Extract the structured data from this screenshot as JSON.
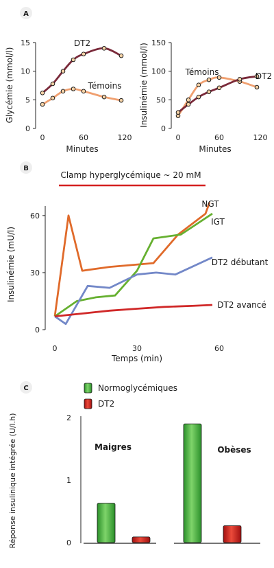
{
  "panel_labels": [
    "A",
    "B",
    "C"
  ],
  "chart_data": [
    {
      "panel": "A",
      "type": "line",
      "xlabel": "Minutes",
      "ylabel": "Glycémie (mmol/l)",
      "xticks": [
        0,
        60,
        120
      ],
      "yticks": [
        0,
        5,
        10,
        15
      ],
      "xlim": [
        -10,
        130
      ],
      "ylim": [
        0,
        15
      ],
      "series": [
        {
          "name": "DT2",
          "color": "#7a2a3a",
          "x": [
            0,
            15,
            30,
            45,
            60,
            90,
            115
          ],
          "y": [
            6.2,
            7.8,
            10.0,
            12.0,
            13.0,
            14.0,
            12.7
          ]
        },
        {
          "name": "Témoins",
          "color": "#f0a070",
          "x": [
            0,
            15,
            30,
            45,
            60,
            90,
            115
          ],
          "y": [
            4.2,
            5.3,
            6.5,
            6.9,
            6.5,
            5.5,
            4.9
          ]
        }
      ]
    },
    {
      "panel": "A",
      "type": "line",
      "xlabel": "Minutes",
      "ylabel": "Insulinémie (mmol/l)",
      "xticks": [
        0,
        60,
        120
      ],
      "yticks": [
        0,
        50,
        100,
        150
      ],
      "xlim": [
        -10,
        130
      ],
      "ylim": [
        0,
        150
      ],
      "series": [
        {
          "name": "Témoins",
          "color": "#f0a070",
          "x": [
            0,
            15,
            30,
            45,
            60,
            90,
            115
          ],
          "y": [
            22,
            50,
            76,
            85,
            89,
            82,
            72
          ]
        },
        {
          "name": "DT2",
          "color": "#7a2a3a",
          "x": [
            0,
            15,
            30,
            45,
            60,
            90,
            115
          ],
          "y": [
            28,
            42,
            55,
            64,
            71,
            86,
            91
          ]
        }
      ]
    },
    {
      "panel": "B",
      "type": "line",
      "title": "Clamp hyperglycémique ~ 20 mM",
      "xlabel": "Temps (min)",
      "ylabel": "Insulinémie (mU/l)",
      "xticks": [
        0,
        30,
        60
      ],
      "yticks": [
        0,
        30,
        60
      ],
      "xlim": [
        0,
        60
      ],
      "ylim": [
        0,
        65
      ],
      "series": [
        {
          "name": "NGT",
          "color": "#e06a2a",
          "x": [
            0,
            5,
            10,
            20,
            36,
            45,
            55,
            56.5
          ],
          "y": [
            7,
            60,
            31,
            33,
            35,
            50,
            61,
            67
          ]
        },
        {
          "name": "IGT",
          "color": "#66b030",
          "x": [
            0,
            8,
            15,
            22,
            30,
            36,
            46,
            57.5
          ],
          "y": [
            7,
            15,
            17,
            18,
            31,
            48,
            50,
            61
          ]
        },
        {
          "name": "DT2 débutant",
          "color": "#7388c8",
          "x": [
            0,
            4,
            12,
            20,
            30,
            37,
            44,
            57.5
          ],
          "y": [
            7,
            3,
            23,
            22,
            29,
            30,
            29,
            38
          ]
        },
        {
          "name": "DT2 avancé",
          "color": "#d02828",
          "x": [
            0,
            10,
            20,
            30,
            40,
            50,
            57.5
          ],
          "y": [
            7,
            8.5,
            10,
            11,
            12,
            12.5,
            13
          ]
        }
      ]
    },
    {
      "panel": "C",
      "type": "bar",
      "ylabel": "Réponse insulinique intégrée (U/l.h)",
      "yticks": [
        0,
        1,
        2
      ],
      "ylim": [
        0,
        2
      ],
      "categories": [
        "Maigres",
        "Obèses"
      ],
      "series": [
        {
          "name": "Normoglycémiques",
          "color": "#3aa83a",
          "values": [
            0.63,
            1.9
          ]
        },
        {
          "name": "DT2",
          "color": "#c21a1a",
          "values": [
            0.09,
            0.27
          ]
        }
      ]
    }
  ]
}
